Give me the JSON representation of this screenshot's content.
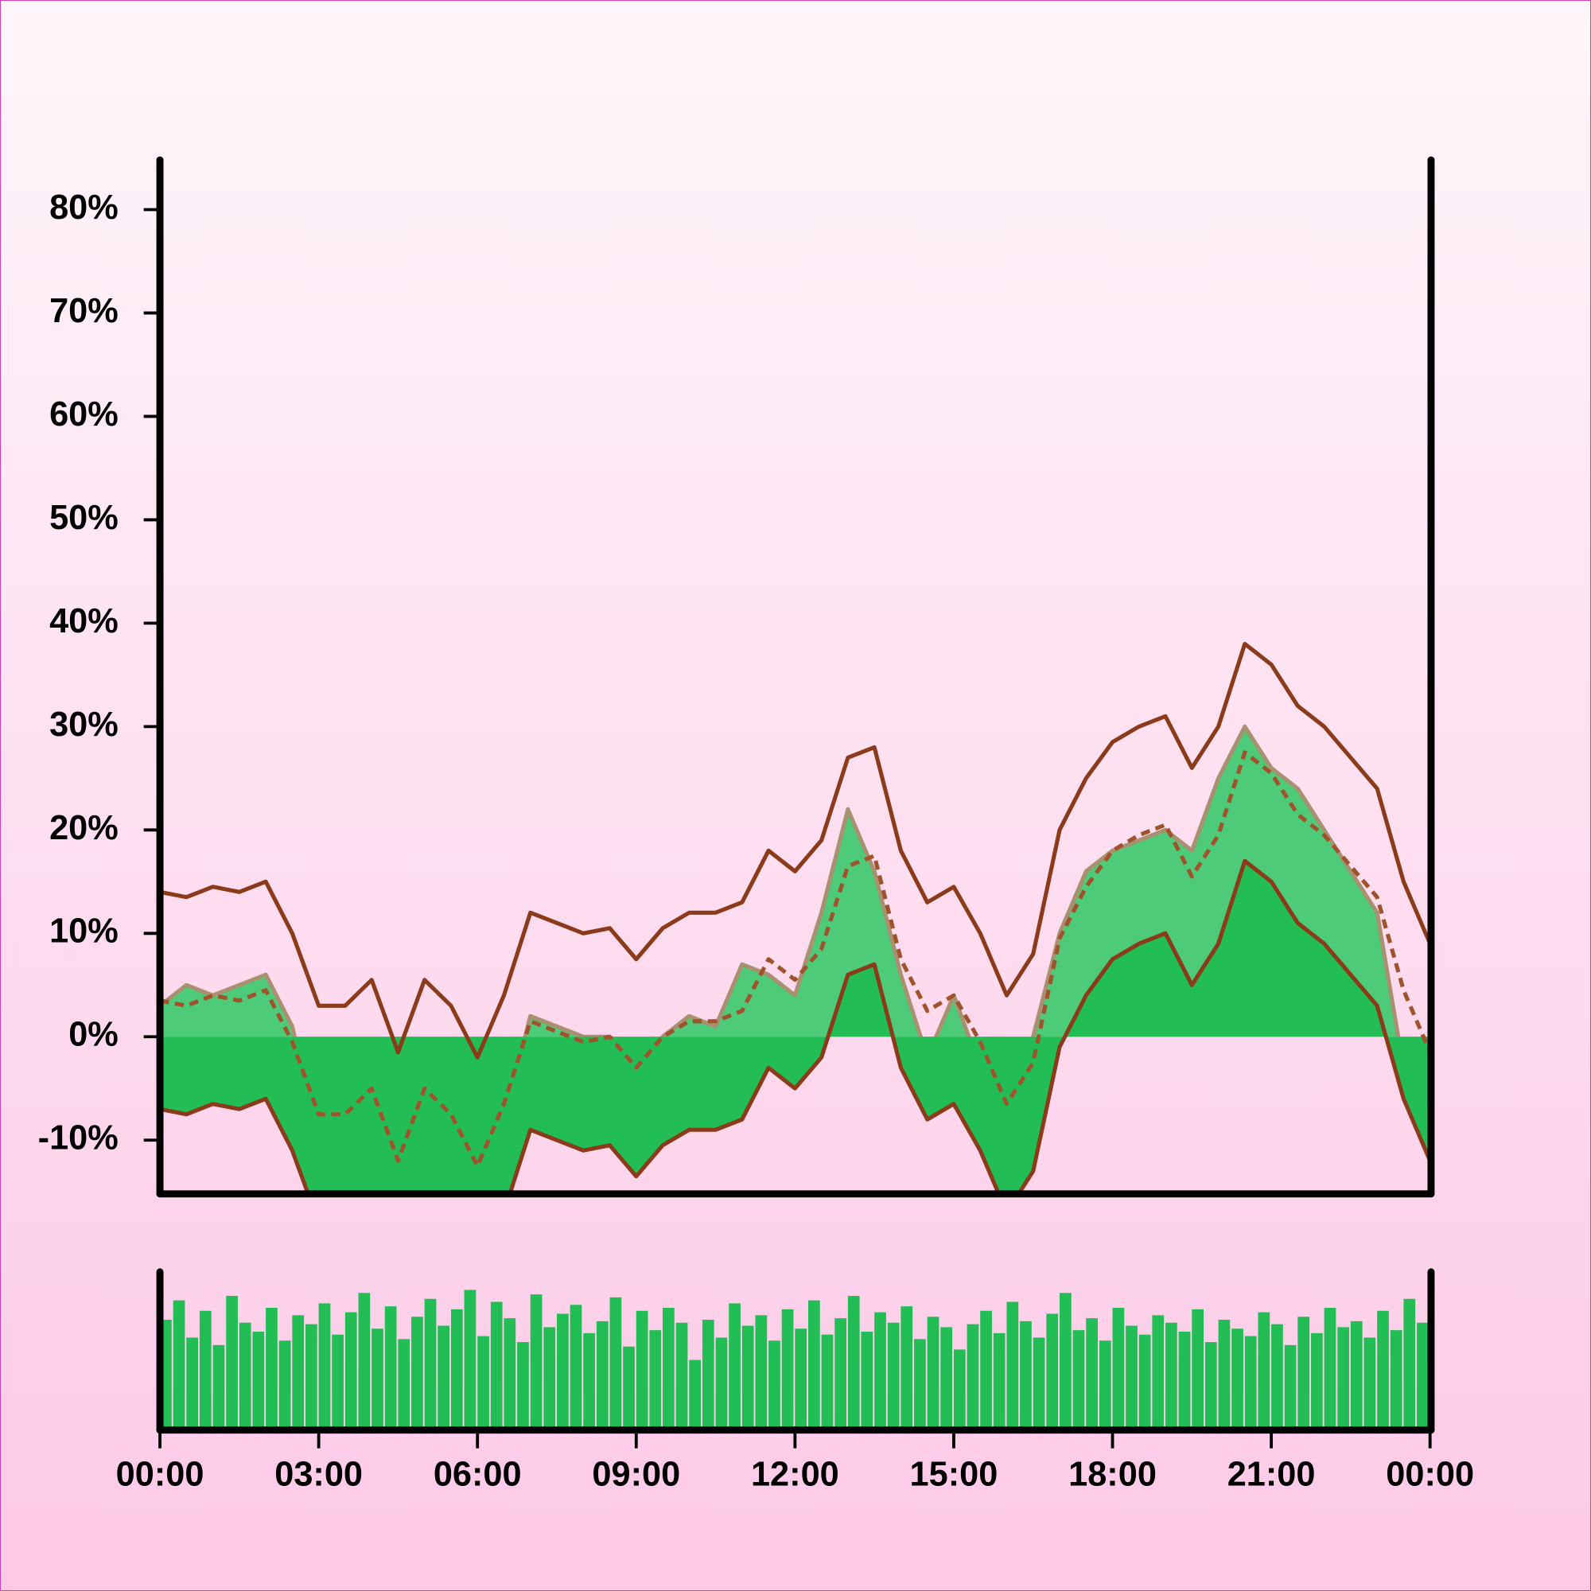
{
  "chart_data": [
    {
      "type": "area",
      "x": [
        0,
        0.5,
        1,
        1.5,
        2,
        2.5,
        3,
        3.5,
        4,
        4.5,
        5,
        5.5,
        6,
        6.5,
        7,
        7.5,
        8,
        8.5,
        9,
        9.5,
        10,
        10.5,
        11,
        11.5,
        12,
        12.5,
        13,
        13.5,
        14,
        14.5,
        15,
        15.5,
        16,
        16.5,
        17,
        17.5,
        18,
        18.5,
        19,
        19.5,
        20,
        20.5,
        21,
        21.5,
        22,
        22.5,
        23,
        23.5,
        24
      ],
      "xlim": [
        0,
        24
      ],
      "ylim": [
        -15,
        85
      ],
      "yticks": [
        {
          "value": -10,
          "label": "-10%"
        },
        {
          "value": 0,
          "label": "0%"
        },
        {
          "value": 10,
          "label": "10%"
        },
        {
          "value": 20,
          "label": "20%"
        },
        {
          "value": 30,
          "label": "30%"
        },
        {
          "value": 40,
          "label": "40%"
        },
        {
          "value": 50,
          "label": "50%"
        },
        {
          "value": 60,
          "label": "60%"
        },
        {
          "value": 70,
          "label": "70%"
        },
        {
          "value": 80,
          "label": "80%"
        }
      ],
      "series": [
        {
          "color": "#a89070",
          "fill": "#4ecb78",
          "values": [
            3,
            5,
            4,
            5,
            6,
            1,
            -10,
            -5,
            -8,
            -12,
            -3,
            -12,
            -13,
            -8,
            2,
            1,
            0,
            0,
            -3,
            0,
            2,
            1,
            7,
            6,
            4,
            12,
            22,
            16,
            6,
            -2,
            4,
            -3,
            -14,
            0,
            10,
            16,
            18,
            19,
            20,
            18,
            25,
            30,
            26,
            24,
            20,
            16,
            12,
            -3,
            -4
          ]
        },
        {
          "color": "#8b3a1a",
          "fill": "#22bd55",
          "values": [
            -7,
            -7.5,
            -6.5,
            -7,
            -6,
            -11,
            -18,
            -18,
            -15.5,
            -22.5,
            -15.5,
            -18,
            -23,
            -17,
            -9,
            -10,
            -11,
            -10.5,
            -13.5,
            -10.5,
            -9,
            -9,
            -8,
            -3,
            -5,
            -2,
            6,
            7,
            -3,
            -8,
            -6.5,
            -11,
            -17,
            -13,
            -1,
            4,
            7.5,
            9,
            10,
            5,
            9,
            17,
            15,
            11,
            9,
            6,
            3,
            -6,
            -12
          ]
        },
        {
          "color": "#a0522d",
          "dashed": true,
          "values": [
            3.5,
            3,
            4,
            3.5,
            4.5,
            -0.5,
            -7.5,
            -7.5,
            -5,
            -12,
            -5,
            -7.5,
            -12.5,
            -6.5,
            1.5,
            0.5,
            -0.5,
            0,
            -3,
            0,
            1.5,
            1.5,
            2.5,
            7.5,
            5.5,
            8.5,
            16.5,
            17.5,
            7.5,
            2.5,
            4,
            -0.5,
            -6.5,
            -2.5,
            9.5,
            14.5,
            18,
            19.5,
            20.5,
            15.5,
            19.5,
            27.5,
            25.5,
            21.5,
            19.5,
            16.5,
            13.5,
            4.5,
            -1.5
          ]
        },
        {
          "color": "#8b3a1a",
          "values": [
            14,
            13.5,
            14.5,
            14,
            15,
            10,
            3,
            3,
            5.5,
            -1.5,
            5.5,
            3,
            -2,
            4,
            12,
            11,
            10,
            10.5,
            7.5,
            10.5,
            12,
            12,
            13,
            18,
            16,
            19,
            27,
            28,
            18,
            13,
            14.5,
            10,
            4,
            8,
            20,
            25,
            28.5,
            30,
            31,
            26,
            30,
            38,
            36,
            32,
            30,
            27,
            24,
            15,
            9
          ]
        }
      ]
    },
    {
      "type": "bar",
      "x": [
        0,
        0.25,
        0.5,
        0.75,
        1,
        1.25,
        1.5,
        1.75,
        2,
        2.25,
        2.5,
        2.75,
        3,
        3.25,
        3.5,
        3.75,
        4,
        4.25,
        4.5,
        4.75,
        5,
        5.25,
        5.5,
        5.75,
        6,
        6.25,
        6.5,
        6.75,
        7,
        7.25,
        7.5,
        7.75,
        8,
        8.25,
        8.5,
        8.75,
        9,
        9.25,
        9.5,
        9.75,
        10,
        10.25,
        10.5,
        10.75,
        11,
        11.25,
        11.5,
        11.75,
        12,
        12.25,
        12.5,
        12.75,
        13,
        13.25,
        13.5,
        13.75,
        14,
        14.25,
        14.5,
        14.75,
        15,
        15.25,
        15.5,
        15.75,
        16,
        16.25,
        16.5,
        16.75,
        17,
        17.25,
        17.5,
        17.75,
        18,
        18.25,
        18.5,
        18.75,
        19,
        19.25,
        19.5,
        19.75,
        20,
        20.25,
        20.5,
        20.75,
        21,
        21.25,
        21.5,
        21.75,
        22,
        22.25,
        22.5,
        22.75,
        23,
        23.25,
        23.5,
        23.75
      ],
      "values": [
        72,
        85,
        60,
        78,
        55,
        88,
        70,
        64,
        80,
        58,
        75,
        69,
        83,
        62,
        77,
        90,
        66,
        81,
        59,
        74,
        86,
        68,
        79,
        92,
        61,
        84,
        73,
        57,
        89,
        67,
        76,
        82,
        63,
        71,
        87,
        54,
        78,
        65,
        80,
        70,
        45,
        72,
        60,
        83,
        68,
        75,
        58,
        79,
        66,
        85,
        62,
        73,
        88,
        64,
        77,
        70,
        81,
        59,
        74,
        67,
        52,
        69,
        78,
        63,
        84,
        71,
        60,
        76,
        90,
        65,
        73,
        58,
        80,
        68,
        62,
        75,
        70,
        64,
        79,
        57,
        72,
        66,
        61,
        77,
        69,
        55,
        74,
        63,
        80,
        67,
        71,
        60,
        78,
        65,
        86,
        70
      ],
      "color": "#22bd55",
      "xlim": [
        0,
        24
      ],
      "ylim": [
        0,
        100
      ],
      "xticks": [
        {
          "value": 0,
          "label": "00:00"
        },
        {
          "value": 3,
          "label": "03:00"
        },
        {
          "value": 6,
          "label": "06:00"
        },
        {
          "value": 9,
          "label": "09:00"
        },
        {
          "value": 12,
          "label": "12:00"
        },
        {
          "value": 15,
          "label": "15:00"
        },
        {
          "value": 18,
          "label": "18:00"
        },
        {
          "value": 21,
          "label": "21:00"
        },
        {
          "value": 24,
          "label": "00:00"
        }
      ]
    }
  ]
}
